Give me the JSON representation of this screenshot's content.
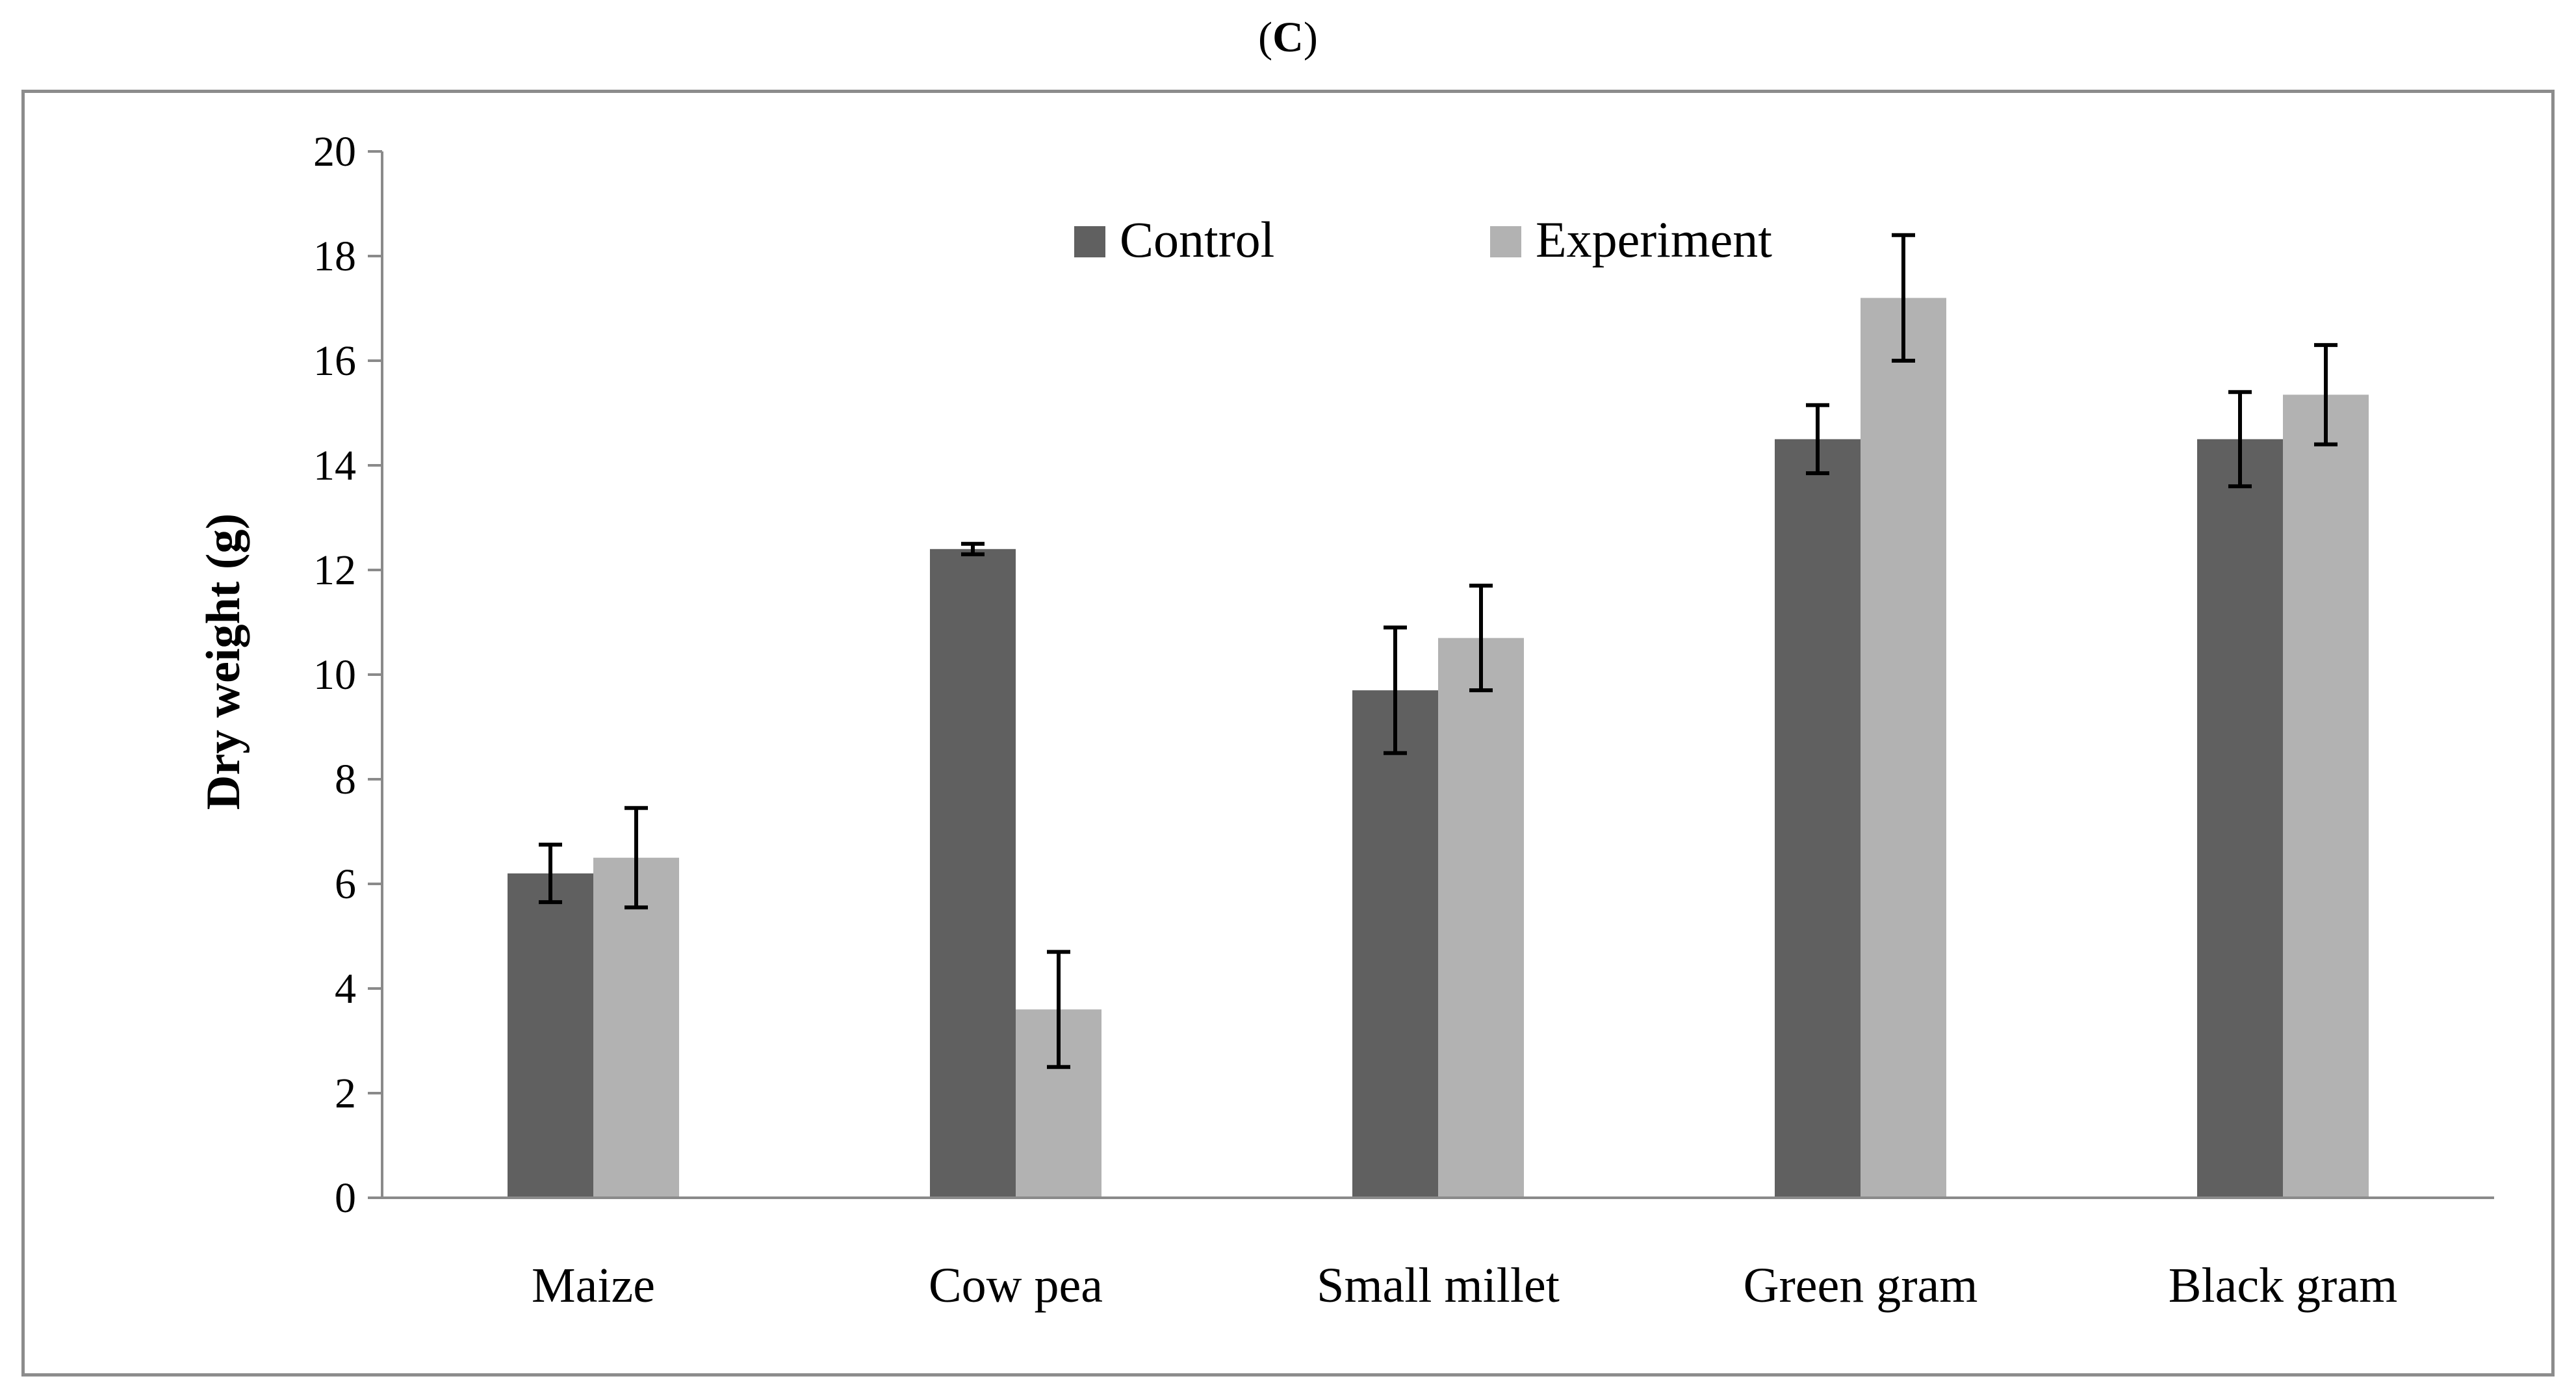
{
  "panel": {
    "open": "(",
    "letter": "C",
    "close": ")"
  },
  "chart_data": {
    "type": "bar",
    "title": "(C)",
    "xlabel": "",
    "ylabel": "Dry weight (g)",
    "ylim": [
      0,
      20
    ],
    "yticks": [
      0,
      2,
      4,
      6,
      8,
      10,
      12,
      14,
      16,
      18,
      20
    ],
    "categories": [
      "Maize",
      "Cow pea",
      "Small millet",
      "Green gram",
      "Black gram"
    ],
    "series": [
      {
        "name": "Control",
        "color": "#606060",
        "values": [
          6.2,
          12.4,
          9.7,
          14.5,
          14.5
        ],
        "errors": [
          0.55,
          0.1,
          1.2,
          0.65,
          0.9
        ]
      },
      {
        "name": "Experiment",
        "color": "#b2b2b2",
        "values": [
          6.5,
          3.6,
          10.7,
          17.2,
          15.35
        ],
        "errors": [
          0.95,
          1.1,
          1.0,
          1.2,
          0.95
        ]
      }
    ],
    "legend_position": "top-center",
    "grid": false
  }
}
